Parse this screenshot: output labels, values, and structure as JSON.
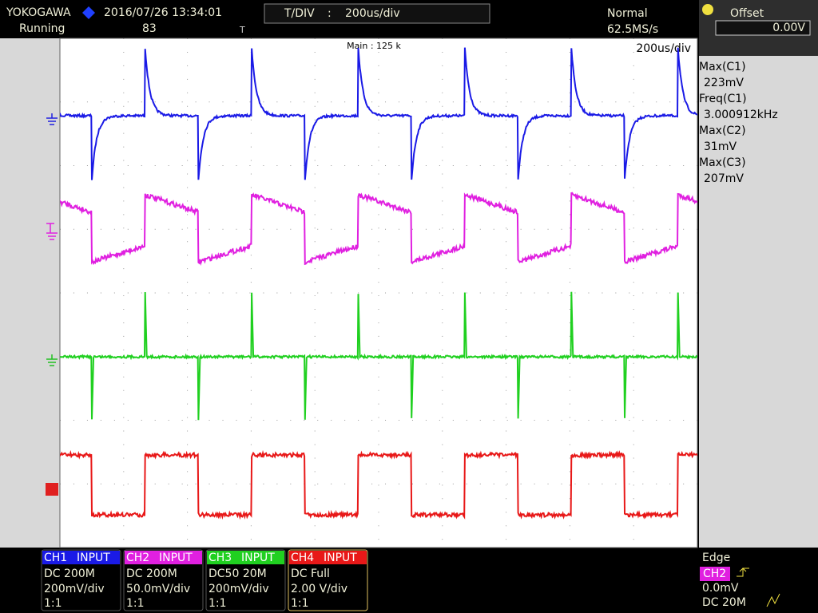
{
  "header": {
    "brand": "YOKOGAWA",
    "datetime": "2016/07/26 13:34:01",
    "status": "Running",
    "count": "83",
    "tdiv_label": "T/DIV",
    "tdiv_sep": ":",
    "tdiv_value": "200us/div",
    "mode": "Normal",
    "sample_rate": "62.5MS/s",
    "offset_label": "Offset",
    "offset_value": "0.00V"
  },
  "screen": {
    "main_label": "Main : 125 k",
    "timebase": "200us/div"
  },
  "measurements": [
    {
      "label": "Max(C1)",
      "value": "223mV"
    },
    {
      "label": "Freq(C1)",
      "value": "3.000912kHz"
    },
    {
      "label": "Max(C2)",
      "value": "31mV"
    },
    {
      "label": "Max(C3)",
      "value": "207mV"
    }
  ],
  "channels": [
    {
      "name": "CH1",
      "input": "INPUT",
      "coupling": "DC 200M",
      "scale": "200mV/div",
      "probe": "1:1"
    },
    {
      "name": "CH2",
      "input": "INPUT",
      "coupling": "DC 200M",
      "scale": "50.0mV/div",
      "probe": "1:1"
    },
    {
      "name": "CH3",
      "input": "INPUT",
      "coupling": "DC50 20M",
      "scale": "200mV/div",
      "probe": "1:1"
    },
    {
      "name": "CH4",
      "input": "INPUT",
      "coupling": "DC Full",
      "scale": "2.00 V/div",
      "probe": "1:1"
    }
  ],
  "trigger": {
    "type": "Edge",
    "source": "CH2",
    "level": "0.0mV",
    "coupling": "DC 20M"
  }
}
